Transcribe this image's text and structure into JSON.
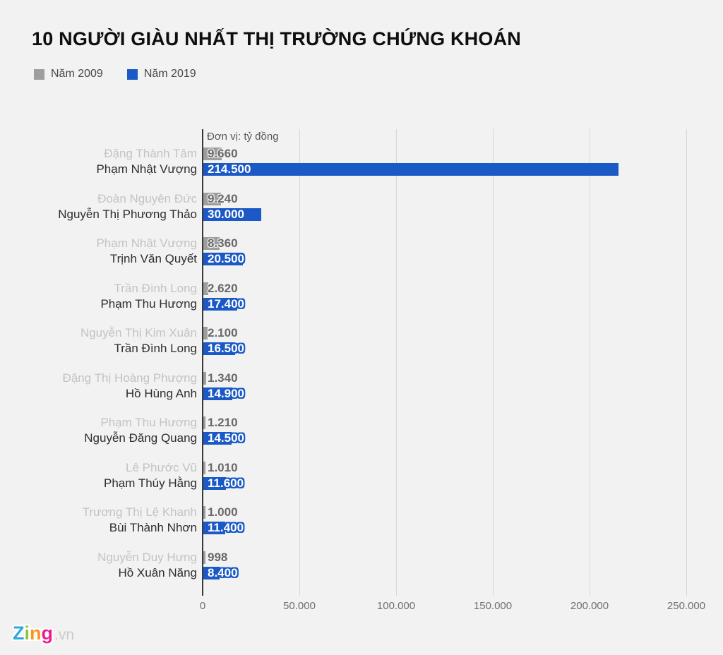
{
  "title": "10 NGƯỜI GIÀU NHẤT THỊ TRƯỜNG CHỨNG KHOÁN",
  "legend": [
    {
      "label": "Năm 2009",
      "color": "#9e9e9e"
    },
    {
      "label": "Năm 2019",
      "color": "#1a59c6"
    }
  ],
  "unit_note": "Đơn vị: tỷ đồng",
  "colors": {
    "background": "#f2f2f2",
    "bar_2009": "#9e9e9e",
    "bar_2019": "#1a59c6",
    "label_2009": "#c3c3c3",
    "label_2019": "#2d2d2d",
    "axis_text": "#6e6e6e",
    "gridline": "#d7d7d7"
  },
  "chart_data": {
    "type": "bar",
    "orientation": "horizontal",
    "title": "10 NGƯỜI GIÀU NHẤT THỊ TRƯỜNG CHỨNG KHOÁN",
    "unit": "tỷ đồng",
    "series_names": [
      "Năm 2009",
      "Năm 2019"
    ],
    "xlim": [
      0,
      250000
    ],
    "grid": true,
    "x_ticks": [
      {
        "value": 0,
        "label": "0"
      },
      {
        "value": 50000,
        "label": "50.000"
      },
      {
        "value": 100000,
        "label": "100.000"
      },
      {
        "value": 150000,
        "label": "150.000"
      },
      {
        "value": 200000,
        "label": "200.000"
      },
      {
        "value": 250000,
        "label": "250.000"
      }
    ],
    "groups": [
      {
        "name_2009": "Đặng Thành Tâm",
        "value_2009": 9660,
        "label_2009": "9.660",
        "name_2019": "Phạm Nhật Vượng",
        "value_2019": 214500,
        "label_2019": "214.500"
      },
      {
        "name_2009": "Đoàn Nguyên Đức",
        "value_2009": 9240,
        "label_2009": "9.240",
        "name_2019": "Nguyễn Thị Phương Thảo",
        "value_2019": 30000,
        "label_2019": "30.000"
      },
      {
        "name_2009": "Phạm Nhật Vượng",
        "value_2009": 8360,
        "label_2009": "8.360",
        "name_2019": "Trịnh Văn Quyết",
        "value_2019": 20500,
        "label_2019": "20.500"
      },
      {
        "name_2009": "Trần Đình Long",
        "value_2009": 2620,
        "label_2009": "2.620",
        "name_2019": "Phạm Thu Hương",
        "value_2019": 17400,
        "label_2019": "17.400"
      },
      {
        "name_2009": "Nguyễn Thị Kim Xuân",
        "value_2009": 2100,
        "label_2009": "2.100",
        "name_2019": "Trần Đình Long",
        "value_2019": 16500,
        "label_2019": "16.500"
      },
      {
        "name_2009": "Đặng Thị Hoàng Phượng",
        "value_2009": 1340,
        "label_2009": "1.340",
        "name_2019": "Hồ Hùng Anh",
        "value_2019": 14900,
        "label_2019": "14.900"
      },
      {
        "name_2009": "Phạm Thu Hương",
        "value_2009": 1210,
        "label_2009": "1.210",
        "name_2019": "Nguyễn Đăng Quang",
        "value_2019": 14500,
        "label_2019": "14.500"
      },
      {
        "name_2009": "Lê Phước Vũ",
        "value_2009": 1010,
        "label_2009": "1.010",
        "name_2019": "Phạm Thúy Hằng",
        "value_2019": 11600,
        "label_2019": "11.600"
      },
      {
        "name_2009": "Trương Thị Lệ Khanh",
        "value_2009": 1000,
        "label_2009": "1.000",
        "name_2019": "Bùi Thành Nhơn",
        "value_2019": 11400,
        "label_2019": "11.400"
      },
      {
        "name_2009": "Nguyễn Duy Hưng",
        "value_2009": 998,
        "label_2009": "998",
        "name_2019": "Hồ Xuân Năng",
        "value_2019": 8400,
        "label_2019": "8.400"
      }
    ]
  },
  "watermark": {
    "letters": [
      {
        "char": "Z",
        "color": "#2fa8e0"
      },
      {
        "char": "i",
        "color": "#8cc63f"
      },
      {
        "char": "n",
        "color": "#f7941e"
      },
      {
        "char": "g",
        "color": "#ec1e8c"
      }
    ],
    "suffix": ".vn"
  }
}
